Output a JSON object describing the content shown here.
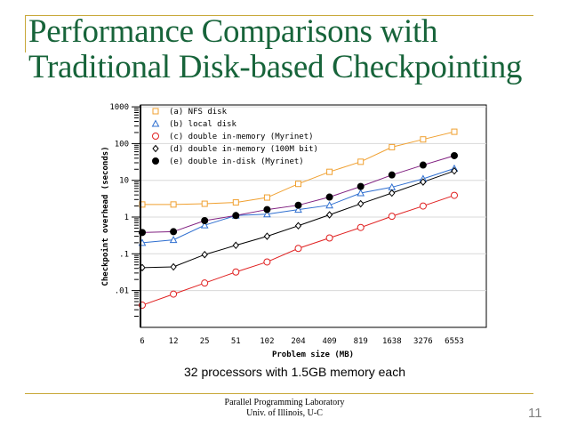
{
  "slide": {
    "title_line1": "Performance Comparisons with",
    "title_line2": "Traditional Disk-based Checkpointing",
    "caption": "32 processors  with 1.5GB memory each",
    "footer_line1": "Parallel Programming Laboratory",
    "footer_line2": "Univ. of Illinois, U-C",
    "page_number": "11"
  },
  "chart_data": {
    "type": "line",
    "xlabel": "Problem size (MB)",
    "ylabel": "Checkpoint overhead (seconds)",
    "yscale": "log",
    "ylim": [
      0.001,
      1000
    ],
    "grid": true,
    "legend_position": "top-left",
    "categories": [
      "6",
      "12",
      "25",
      "51",
      "102",
      "204",
      "409",
      "819",
      "1638",
      "3276",
      "6553"
    ],
    "yticks": [
      {
        "value": 1000,
        "label": "1000"
      },
      {
        "value": 100,
        "label": "100"
      },
      {
        "value": 10,
        "label": "10"
      },
      {
        "value": 1,
        "label": "1"
      },
      {
        "value": 0.1,
        "label": ".1"
      },
      {
        "value": 0.01,
        "label": ".01"
      }
    ],
    "series": [
      {
        "name": "(a) NFS disk",
        "marker": "square",
        "color": "#f0a030",
        "line_color": "#f0a030",
        "values": [
          2.2,
          2.2,
          2.3,
          2.5,
          3.4,
          8,
          17,
          32,
          80,
          130,
          210
        ]
      },
      {
        "name": "(b) local disk",
        "marker": "triangle",
        "color": "#2f6fd0",
        "line_color": "#2f6fd0",
        "values": [
          0.2,
          0.24,
          0.6,
          1.1,
          1.2,
          1.6,
          2.1,
          4.5,
          6.5,
          11,
          21
        ]
      },
      {
        "name": "(c) double in-memory (Myrinet)",
        "marker": "circle-open",
        "color": "#e02020",
        "line_color": "#e02020",
        "values": [
          0.004,
          0.008,
          0.016,
          0.032,
          0.06,
          0.14,
          0.27,
          0.52,
          1.05,
          2.0,
          3.9
        ]
      },
      {
        "name": "(d) double in-memory (100M bit)",
        "marker": "diamond",
        "color": "#000000",
        "line_color": "#000000",
        "values": [
          0.042,
          0.044,
          0.095,
          0.17,
          0.3,
          0.58,
          1.15,
          2.3,
          4.5,
          9,
          18
        ]
      },
      {
        "name": "(e) double in-disk (Myrinet)",
        "marker": "circle-filled",
        "color": "#000000",
        "line_color": "#802080",
        "values": [
          0.38,
          0.4,
          0.8,
          1.1,
          1.6,
          2.1,
          3.5,
          6.8,
          14,
          26,
          47
        ]
      }
    ]
  }
}
